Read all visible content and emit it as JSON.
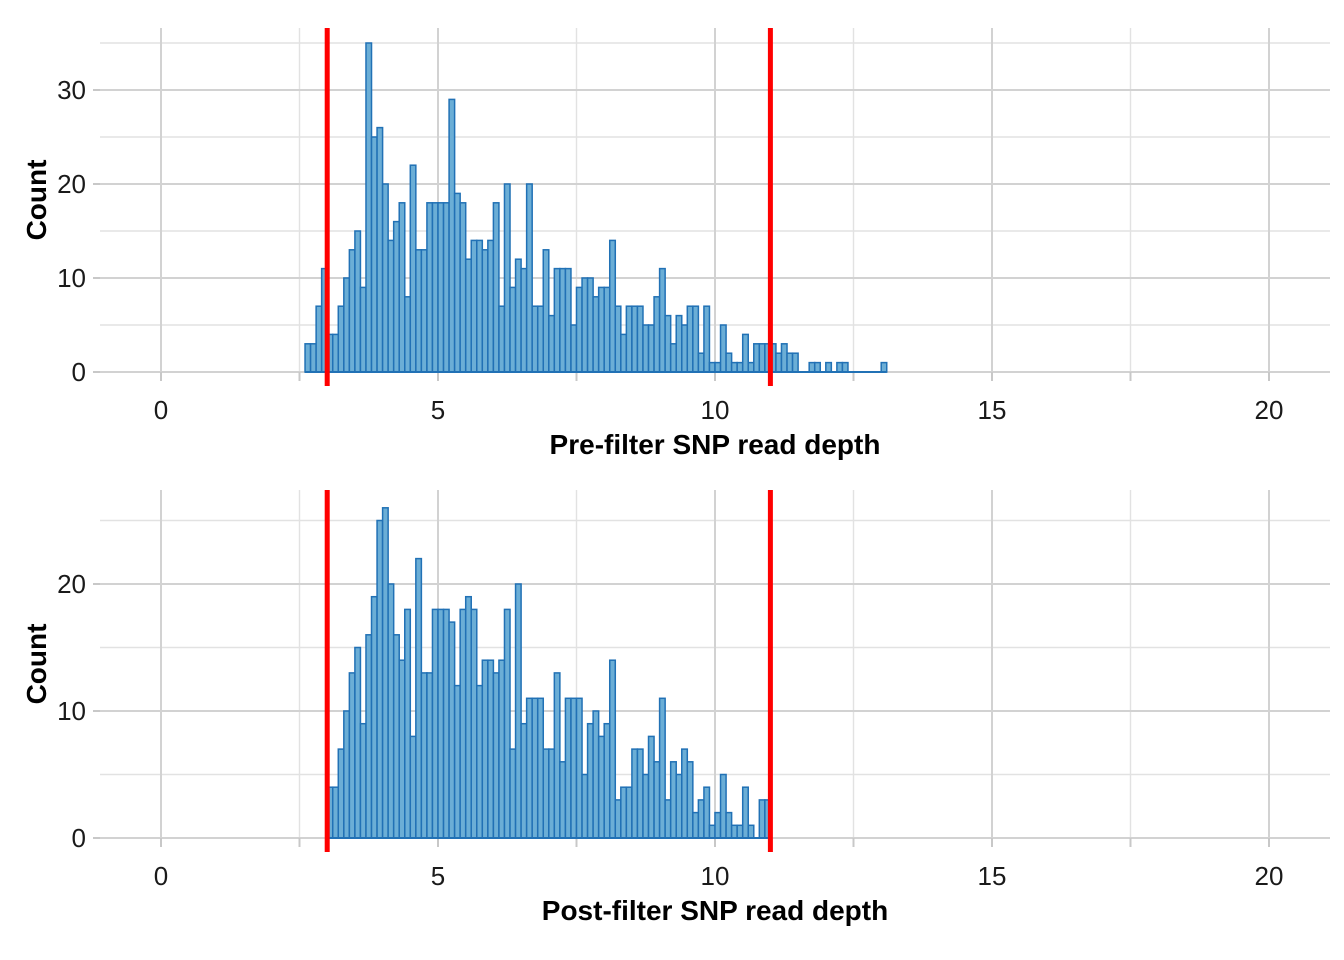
{
  "page": {
    "background_color": "#FFFFFF",
    "accent_red": "#FF0000",
    "bar_fill_color": "#6BAED6",
    "bar_stroke_color": "#2171B5",
    "grid_major_color": "#D2D2D2",
    "grid_minor_color": "#E2E2E2"
  },
  "chart_data": [
    {
      "type": "bar",
      "subtype": "histogram",
      "title": "",
      "xlabel": "Pre-filter SNP read depth",
      "ylabel": "Count",
      "bin_start": 2.6,
      "bin_width": 0.1,
      "counts": [
        3,
        3,
        7,
        11,
        4,
        4,
        7,
        10,
        13,
        15,
        9,
        35,
        25,
        26,
        20,
        14,
        16,
        18,
        8,
        22,
        13,
        13,
        18,
        18,
        18,
        18,
        29,
        19,
        18,
        12,
        14,
        14,
        13,
        14,
        18,
        7,
        20,
        9,
        12,
        11,
        20,
        7,
        7,
        13,
        6,
        11,
        11,
        11,
        5,
        9,
        10,
        10,
        8,
        9,
        9,
        14,
        7,
        4,
        7,
        7,
        7,
        5,
        5,
        8,
        11,
        6,
        3,
        6,
        5,
        7,
        7,
        2,
        7,
        1,
        1,
        5,
        2,
        1,
        1,
        4,
        1,
        3,
        3,
        3,
        3,
        2,
        3,
        2,
        2,
        0,
        0,
        1,
        1,
        0,
        1,
        0,
        1,
        1,
        0,
        0,
        0,
        0,
        0,
        0,
        1
      ],
      "x_ticks": [
        0,
        5,
        10,
        15,
        20
      ],
      "x_minor_ticks": [
        2.5,
        7.5,
        12.5,
        17.5
      ],
      "y_ticks": [
        0,
        10,
        20,
        30
      ],
      "y_minor_ticks": [
        5,
        15,
        25,
        35
      ],
      "xlim": [
        -1.1,
        21.1
      ],
      "ylim": [
        0,
        36.6
      ],
      "grid": "on",
      "legend": "none",
      "vlines": {
        "values": [
          3,
          11
        ],
        "color": "#FF0000"
      },
      "bar_fill": "#6BAED6",
      "bar_stroke": "#2171B5"
    },
    {
      "type": "bar",
      "subtype": "histogram",
      "title": "",
      "xlabel": "Post-filter SNP read depth",
      "ylabel": "Count",
      "bin_start": 3.0,
      "bin_width": 0.1,
      "counts": [
        4,
        4,
        7,
        10,
        13,
        15,
        9,
        16,
        19,
        25,
        26,
        20,
        16,
        14,
        18,
        8,
        22,
        13,
        13,
        18,
        18,
        18,
        17,
        12,
        18,
        19,
        18,
        12,
        14,
        14,
        13,
        14,
        18,
        7,
        20,
        9,
        11,
        11,
        11,
        7,
        7,
        13,
        6,
        11,
        11,
        11,
        5,
        9,
        10,
        8,
        9,
        14,
        3,
        4,
        4,
        7,
        7,
        5,
        8,
        6,
        11,
        3,
        6,
        5,
        7,
        6,
        2,
        3,
        4,
        1,
        2,
        5,
        2,
        1,
        1,
        4,
        1,
        0,
        3,
        3
      ],
      "x_ticks": [
        0,
        5,
        10,
        15,
        20
      ],
      "x_minor_ticks": [
        2.5,
        7.5,
        12.5,
        17.5
      ],
      "y_ticks": [
        0,
        10,
        20
      ],
      "y_minor_ticks": [
        5,
        15,
        25
      ],
      "xlim": [
        -1.1,
        21.1
      ],
      "ylim": [
        0,
        27.4
      ],
      "grid": "on",
      "legend": "none",
      "vlines": {
        "values": [
          3,
          11
        ],
        "color": "#FF0000"
      },
      "bar_fill": "#6BAED6",
      "bar_stroke": "#2171B5"
    }
  ]
}
